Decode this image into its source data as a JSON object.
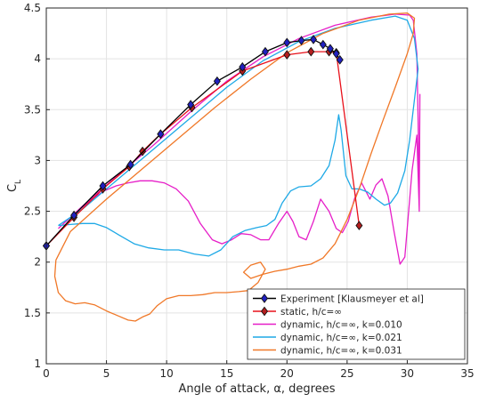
{
  "chart_data": {
    "type": "line",
    "title": "",
    "xlabel": "Angle of attack, α, degrees",
    "ylabel": "C",
    "ylabel_sub": "L",
    "xlim": [
      0,
      35
    ],
    "ylim": [
      1,
      4.5
    ],
    "xticks": [
      "0",
      "5",
      "10",
      "15",
      "20",
      "25",
      "30",
      "35"
    ],
    "yticks": [
      "1",
      "1.5",
      "2",
      "2.5",
      "3",
      "3.5",
      "4",
      "4.5"
    ],
    "grid": true,
    "legend_position": "bottom-right",
    "series": [
      {
        "name": "Experiment [Klausmeyer et al]",
        "color": "#000000",
        "marker": "diamond",
        "marker_color": "#2020c0",
        "points": [
          [
            0,
            2.16
          ],
          [
            2.3,
            2.46
          ],
          [
            4.7,
            2.75
          ],
          [
            7.0,
            2.96
          ],
          [
            9.5,
            3.26
          ],
          [
            12.0,
            3.55
          ],
          [
            14.2,
            3.78
          ],
          [
            16.3,
            3.92
          ],
          [
            18.2,
            4.07
          ],
          [
            20.0,
            4.16
          ],
          [
            21.2,
            4.18
          ],
          [
            22.2,
            4.19
          ],
          [
            23.0,
            4.14
          ],
          [
            23.6,
            4.1
          ],
          [
            24.1,
            4.05
          ],
          [
            24.4,
            3.99
          ]
        ]
      },
      {
        "name": "static, h/c=∞",
        "color": "#e8101a",
        "marker": "diamond",
        "marker_color": "#b41e1e",
        "points": [
          [
            0,
            2.16
          ],
          [
            2.3,
            2.44
          ],
          [
            4.7,
            2.72
          ],
          [
            6.9,
            2.94
          ],
          [
            8.0,
            3.09
          ],
          [
            9.5,
            3.26
          ],
          [
            12.1,
            3.52
          ],
          [
            16.3,
            3.88
          ],
          [
            20.0,
            4.04
          ],
          [
            22.0,
            4.07
          ],
          [
            23.5,
            4.07
          ],
          [
            24.1,
            4.06
          ],
          [
            26.0,
            2.36
          ]
        ]
      },
      {
        "name": "dynamic, h/c=∞, k=0.010",
        "color": "#e61ec8",
        "marker": "none",
        "points": [
          [
            1.0,
            2.33
          ],
          [
            3,
            2.55
          ],
          [
            6,
            2.86
          ],
          [
            9,
            3.16
          ],
          [
            12,
            3.48
          ],
          [
            15,
            3.78
          ],
          [
            18,
            4.02
          ],
          [
            21,
            4.2
          ],
          [
            24,
            4.33
          ],
          [
            27,
            4.41
          ],
          [
            29,
            4.44
          ],
          [
            30.2,
            4.43
          ],
          [
            30.5,
            4.38
          ],
          [
            30.8,
            4.05
          ],
          [
            30.9,
            3.4
          ],
          [
            31.0,
            2.6
          ],
          [
            31.05,
            3.65
          ],
          [
            31.0,
            2.5
          ],
          [
            30.8,
            3.25
          ],
          [
            30.4,
            2.9
          ],
          [
            29.8,
            2.05
          ],
          [
            29.4,
            1.98
          ],
          [
            28.9,
            2.3
          ],
          [
            28.4,
            2.65
          ],
          [
            27.9,
            2.82
          ],
          [
            27.4,
            2.76
          ],
          [
            26.9,
            2.62
          ],
          [
            26.2,
            2.78
          ],
          [
            25.6,
            2.62
          ],
          [
            25.1,
            2.4
          ],
          [
            24.6,
            2.29
          ],
          [
            24.1,
            2.33
          ],
          [
            23.5,
            2.5
          ],
          [
            22.8,
            2.62
          ],
          [
            22.2,
            2.4
          ],
          [
            21.6,
            2.22
          ],
          [
            21.0,
            2.25
          ],
          [
            20.5,
            2.4
          ],
          [
            20.0,
            2.5
          ],
          [
            19.3,
            2.38
          ],
          [
            18.5,
            2.22
          ],
          [
            17.8,
            2.22
          ],
          [
            17.0,
            2.27
          ],
          [
            16.2,
            2.28
          ],
          [
            15.4,
            2.22
          ],
          [
            14.6,
            2.18
          ],
          [
            13.8,
            2.22
          ],
          [
            12.8,
            2.38
          ],
          [
            11.8,
            2.6
          ],
          [
            10.8,
            2.72
          ],
          [
            9.8,
            2.78
          ],
          [
            8.8,
            2.8
          ],
          [
            7.8,
            2.8
          ],
          [
            6.8,
            2.78
          ],
          [
            5.8,
            2.75
          ],
          [
            4.8,
            2.7
          ],
          [
            3.8,
            2.62
          ],
          [
            2.8,
            2.52
          ],
          [
            1.8,
            2.42
          ],
          [
            1.0,
            2.33
          ]
        ]
      },
      {
        "name": "dynamic, h/c=∞, k=0.021",
        "color": "#1ea9e6",
        "marker": "none",
        "points": [
          [
            1.0,
            2.36
          ],
          [
            3,
            2.52
          ],
          [
            6,
            2.82
          ],
          [
            9,
            3.12
          ],
          [
            12,
            3.42
          ],
          [
            15,
            3.72
          ],
          [
            18,
            3.98
          ],
          [
            21,
            4.17
          ],
          [
            24,
            4.3
          ],
          [
            27,
            4.38
          ],
          [
            29.0,
            4.42
          ],
          [
            30.0,
            4.38
          ],
          [
            30.6,
            4.2
          ],
          [
            30.9,
            3.9
          ],
          [
            30.6,
            3.6
          ],
          [
            30.2,
            3.2
          ],
          [
            29.8,
            2.9
          ],
          [
            29.2,
            2.68
          ],
          [
            28.6,
            2.58
          ],
          [
            28.1,
            2.56
          ],
          [
            27.4,
            2.62
          ],
          [
            26.7,
            2.69
          ],
          [
            26.0,
            2.72
          ],
          [
            25.4,
            2.72
          ],
          [
            24.9,
            2.85
          ],
          [
            24.5,
            3.3
          ],
          [
            24.3,
            3.45
          ],
          [
            24.0,
            3.2
          ],
          [
            23.5,
            2.95
          ],
          [
            22.8,
            2.82
          ],
          [
            22.0,
            2.75
          ],
          [
            21.0,
            2.74
          ],
          [
            20.3,
            2.7
          ],
          [
            19.6,
            2.58
          ],
          [
            19.0,
            2.42
          ],
          [
            18.3,
            2.36
          ],
          [
            17.5,
            2.34
          ],
          [
            16.5,
            2.31
          ],
          [
            15.5,
            2.25
          ],
          [
            14.5,
            2.12
          ],
          [
            13.5,
            2.06
          ],
          [
            12.3,
            2.08
          ],
          [
            11.0,
            2.12
          ],
          [
            9.8,
            2.12
          ],
          [
            8.5,
            2.14
          ],
          [
            7.3,
            2.18
          ],
          [
            6.0,
            2.27
          ],
          [
            5.0,
            2.34
          ],
          [
            4.0,
            2.38
          ],
          [
            3.0,
            2.38
          ],
          [
            2.0,
            2.37
          ],
          [
            1.0,
            2.36
          ]
        ]
      },
      {
        "name": "dynamic, h/c=∞, k=0.031",
        "color": "#f07828",
        "marker": "none",
        "points": [
          [
            0.8,
            2.02
          ],
          [
            2,
            2.3
          ],
          [
            5,
            2.62
          ],
          [
            8,
            2.92
          ],
          [
            11,
            3.22
          ],
          [
            14,
            3.52
          ],
          [
            17,
            3.8
          ],
          [
            20,
            4.06
          ],
          [
            23,
            4.25
          ],
          [
            26,
            4.38
          ],
          [
            28.5,
            4.44
          ],
          [
            30.0,
            4.45
          ],
          [
            30.6,
            4.4
          ],
          [
            30.5,
            4.25
          ],
          [
            30.0,
            4.05
          ],
          [
            29.0,
            3.72
          ],
          [
            28.0,
            3.4
          ],
          [
            27.0,
            3.07
          ],
          [
            26.0,
            2.72
          ],
          [
            25.0,
            2.42
          ],
          [
            24.0,
            2.18
          ],
          [
            23.0,
            2.04
          ],
          [
            22.0,
            1.98
          ],
          [
            21.0,
            1.96
          ],
          [
            20.0,
            1.93
          ],
          [
            19.0,
            1.91
          ],
          [
            18.0,
            1.88
          ],
          [
            17.0,
            1.84
          ],
          [
            16.4,
            1.9
          ],
          [
            17.0,
            1.97
          ],
          [
            17.8,
            2.0
          ],
          [
            18.2,
            1.93
          ],
          [
            17.6,
            1.8
          ],
          [
            16.8,
            1.72
          ],
          [
            16.0,
            1.71
          ],
          [
            15.0,
            1.7
          ],
          [
            14.0,
            1.7
          ],
          [
            13.0,
            1.68
          ],
          [
            12.0,
            1.67
          ],
          [
            11.0,
            1.67
          ],
          [
            10.0,
            1.64
          ],
          [
            9.2,
            1.57
          ],
          [
            8.6,
            1.49
          ],
          [
            8.0,
            1.46
          ],
          [
            7.4,
            1.42
          ],
          [
            6.8,
            1.43
          ],
          [
            6.0,
            1.47
          ],
          [
            5.0,
            1.52
          ],
          [
            4.0,
            1.58
          ],
          [
            3.2,
            1.6
          ],
          [
            2.4,
            1.59
          ],
          [
            1.6,
            1.62
          ],
          [
            1.0,
            1.7
          ],
          [
            0.7,
            1.86
          ],
          [
            0.8,
            2.02
          ]
        ]
      }
    ]
  }
}
